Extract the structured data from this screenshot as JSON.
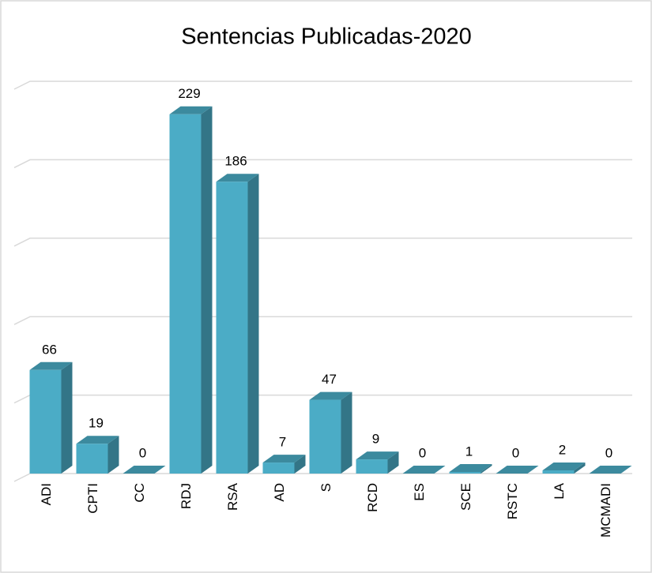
{
  "chart_data": {
    "type": "bar3d",
    "title": "Sentencias Publicadas-2020",
    "categories": [
      "ADI",
      "CPTI",
      "CC",
      "RDJ",
      "RSA",
      "AD",
      "S",
      "RCD",
      "ES",
      "SCE",
      "RSTC",
      "LA",
      "MCMADI"
    ],
    "values": [
      66,
      19,
      0,
      229,
      186,
      7,
      47,
      9,
      0,
      1,
      0,
      2,
      0
    ],
    "color": "#4bacc6",
    "ylim": [
      0,
      250
    ],
    "yticks": [
      0,
      50,
      100,
      150,
      200,
      250
    ],
    "grid": true
  }
}
